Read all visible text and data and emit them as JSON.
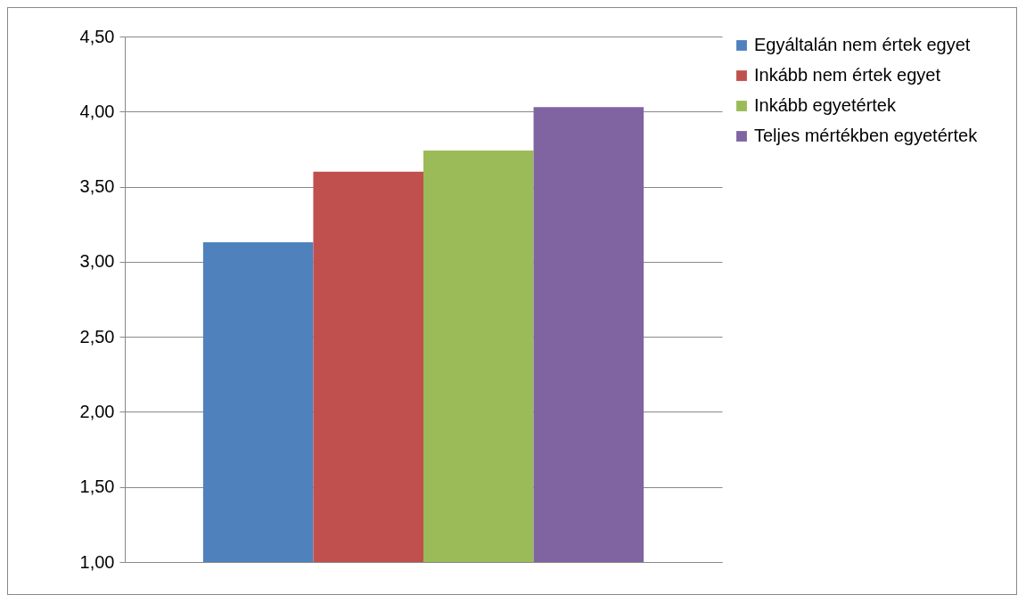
{
  "chart_data": {
    "type": "bar",
    "categories": [
      null
    ],
    "series": [
      {
        "name": "Egyáltalán nem értek egyet",
        "color": "#4f81bd",
        "values": [
          3.13
        ]
      },
      {
        "name": "Inkább nem értek egyet",
        "color": "#c0504d",
        "values": [
          3.6
        ]
      },
      {
        "name": "Inkább egyetértek",
        "color": "#9bbb59",
        "values": [
          3.74
        ]
      },
      {
        "name": "Teljes mértékben egyetértek",
        "color": "#8064a2",
        "values": [
          4.03
        ]
      }
    ],
    "ylim": [
      1,
      4.5
    ],
    "yticks": [
      {
        "value": 1,
        "label": "1,00"
      },
      {
        "value": 1.5,
        "label": "1,50"
      },
      {
        "value": 2,
        "label": "2,00"
      },
      {
        "value": 2.5,
        "label": "2,50"
      },
      {
        "value": 3,
        "label": "3,00"
      },
      {
        "value": 3.5,
        "label": "3,50"
      },
      {
        "value": 4,
        "label": "4,00"
      },
      {
        "value": 4.5,
        "label": "4,50"
      }
    ],
    "grid": "y",
    "legend": "right"
  }
}
